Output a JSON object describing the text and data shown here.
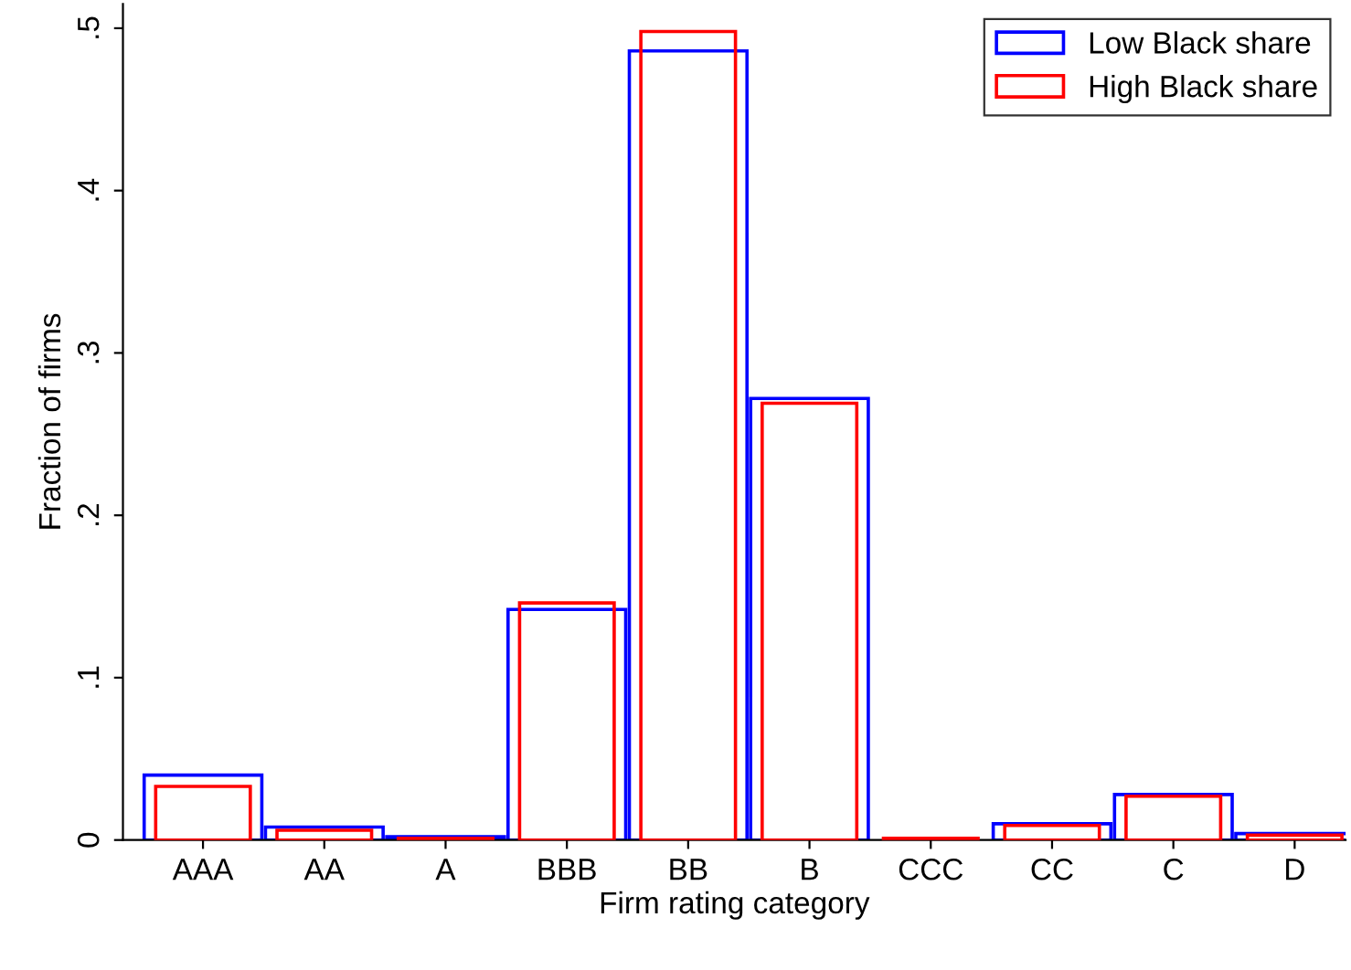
{
  "chart_data": {
    "type": "bar",
    "xlabel": "Firm rating category",
    "ylabel": "Fraction of firms",
    "categories": [
      "AAA",
      "AA",
      "A",
      "BBB",
      "BB",
      "B",
      "CCC",
      "CC",
      "C",
      "D"
    ],
    "series": [
      {
        "name": "Low Black share",
        "color": "#0000ff",
        "values": [
          0.04,
          0.008,
          0.002,
          0.142,
          0.486,
          0.272,
          null,
          0.01,
          0.028,
          0.004
        ]
      },
      {
        "name": "High Black share",
        "color": "#ff0000",
        "values": [
          0.033,
          0.006,
          0.001,
          0.146,
          0.498,
          0.269,
          0.001,
          0.009,
          0.027,
          0.003
        ]
      }
    ],
    "ylim": [
      0,
      0.515
    ],
    "yticks": [
      {
        "value": 0,
        "label": "0"
      },
      {
        "value": 0.1,
        "label": ".1"
      },
      {
        "value": 0.2,
        "label": ".2"
      },
      {
        "value": 0.3,
        "label": ".3"
      },
      {
        "value": 0.4,
        "label": ".4"
      },
      {
        "value": 0.5,
        "label": ".5"
      }
    ],
    "grid": false,
    "legend": "top right"
  }
}
